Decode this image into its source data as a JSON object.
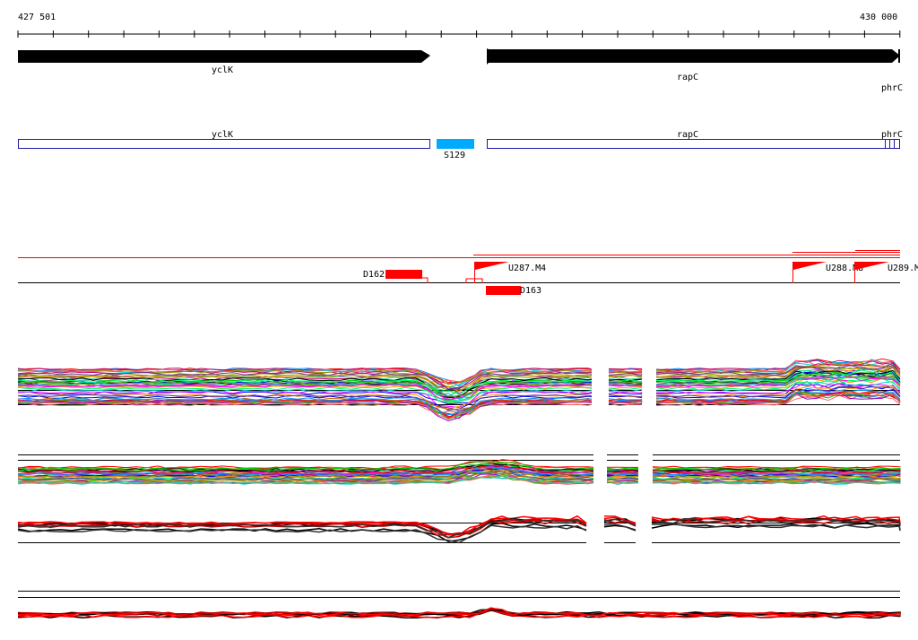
{
  "ruler": {
    "start_label": "427 501",
    "end_label": "430 000"
  },
  "genes": [
    {
      "name": "yclK",
      "strand": "+"
    },
    {
      "name": "rapC",
      "strand": "+"
    },
    {
      "name": "phrC",
      "strand": "+"
    }
  ],
  "annotations": [
    {
      "name": "yclK",
      "kind": "gene-box"
    },
    {
      "name": "S129",
      "kind": "feature"
    },
    {
      "name": "rapC",
      "kind": "gene-box"
    },
    {
      "name": "phrC",
      "kind": "gene-box"
    }
  ],
  "features": {
    "downstream": [
      {
        "name": "D162"
      },
      {
        "name": "D163"
      }
    ],
    "upstream": [
      {
        "name": "U287.M4"
      },
      {
        "name": "U288.M8"
      },
      {
        "name": "U289.M"
      }
    ]
  },
  "tracks": [
    {
      "name": "expression-track-1"
    },
    {
      "name": "expression-track-2"
    },
    {
      "name": "expression-track-3"
    },
    {
      "name": "expression-track-4"
    }
  ],
  "colors": {
    "gene_arrow": "#000000",
    "gene_box_stroke": "#1a1aa6",
    "feature_fill": "#00aaff",
    "marker_red": "#ff0000"
  }
}
